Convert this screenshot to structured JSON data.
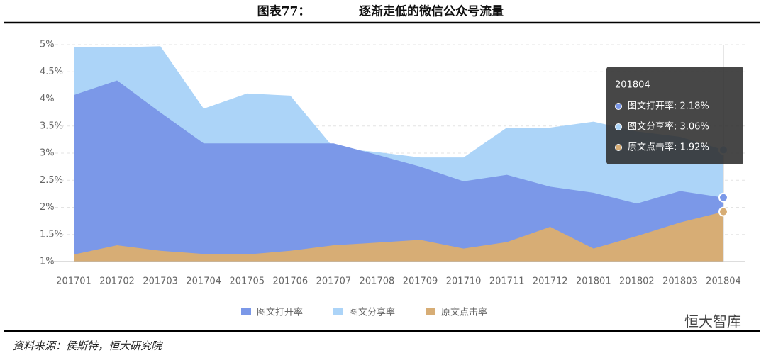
{
  "figure_label": "图表77：",
  "chart_data": {
    "type": "area",
    "title": "逐渐走低的微信公众号流量",
    "categories": [
      "201701",
      "201702",
      "201703",
      "201704",
      "201705",
      "201706",
      "201707",
      "201708",
      "201709",
      "201710",
      "201711",
      "201712",
      "201801",
      "201802",
      "201803",
      "201804"
    ],
    "series": [
      {
        "name": "图文分享率",
        "color": "#acd4f8",
        "values": [
          4.95,
          4.95,
          4.97,
          3.82,
          4.1,
          4.06,
          3.1,
          3.02,
          2.92,
          2.92,
          3.47,
          3.47,
          3.58,
          3.4,
          3.3,
          3.06
        ]
      },
      {
        "name": "图文打开率",
        "color": "#7b98e8",
        "values": [
          4.07,
          4.34,
          3.75,
          3.18,
          3.18,
          3.18,
          3.18,
          2.97,
          2.75,
          2.48,
          2.6,
          2.38,
          2.27,
          2.07,
          2.3,
          2.18
        ]
      },
      {
        "name": "原文点击率",
        "color": "#d7ad75",
        "values": [
          1.13,
          1.3,
          1.2,
          1.14,
          1.13,
          1.2,
          1.3,
          1.35,
          1.4,
          1.24,
          1.36,
          1.64,
          1.24,
          1.47,
          1.72,
          1.92
        ]
      }
    ],
    "legend_order": [
      1,
      0,
      2
    ],
    "ylim": [
      1,
      5
    ],
    "yticks": [
      {
        "value": 1,
        "label": "1%"
      },
      {
        "value": 1.5,
        "label": "1.5%"
      },
      {
        "value": 2,
        "label": "2%"
      },
      {
        "value": 2.5,
        "label": "2.5%"
      },
      {
        "value": 3,
        "label": "3%"
      },
      {
        "value": 3.5,
        "label": "3.5%"
      },
      {
        "value": 4,
        "label": "4%"
      },
      {
        "value": 4.5,
        "label": "4.5%"
      },
      {
        "value": 5,
        "label": "5%"
      }
    ],
    "grid": true,
    "tooltip": {
      "title": "201804",
      "items": [
        "图文打开率: 2.18%",
        "图文分享率: 3.06%",
        "原文点击率: 1.92%"
      ]
    }
  },
  "source": "资料来源：侯斯特，恒大研究院",
  "watermark": "恒大智库"
}
